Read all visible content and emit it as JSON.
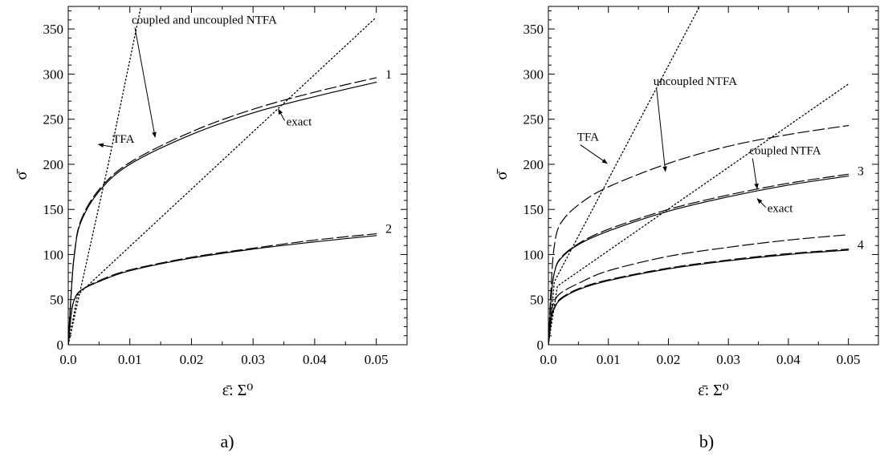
{
  "figure": {
    "panels": [
      "a)",
      "b)"
    ]
  },
  "chart_data": [
    {
      "type": "line",
      "panel_label": "a)",
      "xlabel": "ε̄: Σ⁰",
      "ylabel": "σ̄",
      "xlim": [
        0,
        0.055
      ],
      "ylim": [
        0,
        375
      ],
      "xticks": [
        0,
        0.01,
        0.02,
        0.03,
        0.04,
        0.05
      ],
      "xtick_labels": [
        "0.0",
        "0.01",
        "0.02",
        "0.03",
        "0.04",
        "0.05"
      ],
      "yticks": [
        0,
        50,
        100,
        150,
        200,
        250,
        300,
        350
      ],
      "grid": false,
      "legend": "none",
      "series": [
        {
          "style": "dotted",
          "x": [
            0,
            0.0065,
            0.0118
          ],
          "y": [
            0,
            200,
            375
          ]
        },
        {
          "style": "dotted",
          "x": [
            0,
            0.0015,
            0.05
          ],
          "y": [
            0,
            55,
            363
          ]
        },
        {
          "style": "solid",
          "x": [
            0,
            0.0005,
            0.001,
            0.002,
            0.005,
            0.01,
            0.02,
            0.03,
            0.04,
            0.05
          ],
          "y": [
            0,
            60,
            100,
            135,
            170,
            200,
            233,
            257,
            275,
            291
          ]
        },
        {
          "style": "dashed",
          "x": [
            0,
            0.0005,
            0.001,
            0.002,
            0.005,
            0.01,
            0.02,
            0.03,
            0.04,
            0.05
          ],
          "y": [
            0,
            60,
            101,
            137,
            172,
            202,
            236,
            261,
            280,
            296
          ]
        },
        {
          "style": "solid",
          "x": [
            0,
            0.0005,
            0.001,
            0.002,
            0.005,
            0.01,
            0.02,
            0.03,
            0.04,
            0.05
          ],
          "y": [
            0,
            35,
            50,
            60,
            70,
            82,
            96,
            106,
            114,
            121
          ]
        },
        {
          "style": "dashed",
          "x": [
            0,
            0.0005,
            0.001,
            0.002,
            0.005,
            0.01,
            0.02,
            0.03,
            0.04,
            0.05
          ],
          "y": [
            0,
            35,
            50,
            60,
            71,
            83,
            97,
            107,
            116,
            123
          ]
        }
      ],
      "annotations": [
        {
          "text": "coupled and uncoupled NTFA",
          "x": 0.0103,
          "y": 356,
          "arrow_to": [
            0.0141,
            230
          ]
        },
        {
          "text": "TFA",
          "x": 0.0072,
          "y": 224,
          "arrow_to": [
            0.0049,
            222
          ]
        },
        {
          "text": "exact",
          "x": 0.0354,
          "y": 243,
          "arrow_to": [
            0.0341,
            261
          ]
        },
        {
          "text": "1",
          "x": 0.0515,
          "y": 295
        },
        {
          "text": "2",
          "x": 0.0515,
          "y": 124
        }
      ]
    },
    {
      "type": "line",
      "panel_label": "b)",
      "xlabel": "ε̄: Σ⁰",
      "ylabel": "σ̄",
      "xlim": [
        0,
        0.055
      ],
      "ylim": [
        0,
        375
      ],
      "xticks": [
        0,
        0.01,
        0.02,
        0.03,
        0.04,
        0.05
      ],
      "xtick_labels": [
        "0.0",
        "0.01",
        "0.02",
        "0.03",
        "0.04",
        "0.05"
      ],
      "yticks": [
        0,
        50,
        100,
        150,
        200,
        250,
        300,
        350
      ],
      "grid": false,
      "legend": "none",
      "series": [
        {
          "style": "dotted",
          "x": [
            0,
            0.001,
            0.0252
          ],
          "y": [
            0,
            70,
            375
          ]
        },
        {
          "style": "dotted",
          "x": [
            0,
            0.0015,
            0.05
          ],
          "y": [
            0,
            65,
            289
          ]
        },
        {
          "style": "dashed",
          "x": [
            0,
            0.0005,
            0.001,
            0.002,
            0.005,
            0.01,
            0.02,
            0.03,
            0.04,
            0.05
          ],
          "y": [
            0,
            70,
            110,
            134,
            155,
            175,
            201,
            220,
            233,
            243
          ]
        },
        {
          "style": "solid",
          "x": [
            0,
            0.0005,
            0.001,
            0.002,
            0.005,
            0.01,
            0.02,
            0.03,
            0.04,
            0.05
          ],
          "y": [
            0,
            55,
            80,
            95,
            111,
            126,
            148,
            164,
            177,
            187
          ]
        },
        {
          "style": "dashed",
          "x": [
            0,
            0.0005,
            0.001,
            0.002,
            0.005,
            0.01,
            0.02,
            0.03,
            0.04,
            0.05
          ],
          "y": [
            0,
            55,
            80,
            96,
            112,
            128,
            150,
            166,
            179,
            189
          ]
        },
        {
          "style": "dashed",
          "x": [
            0,
            0.0005,
            0.001,
            0.002,
            0.005,
            0.01,
            0.02,
            0.03,
            0.04,
            0.05
          ],
          "y": [
            0,
            35,
            48,
            57,
            68,
            82,
            98,
            108,
            116,
            122
          ]
        },
        {
          "style": "solid",
          "x": [
            0,
            0.0005,
            0.001,
            0.002,
            0.005,
            0.01,
            0.02,
            0.03,
            0.04,
            0.05
          ],
          "y": [
            0,
            30,
            40,
            50,
            61,
            71,
            84,
            93,
            100,
            105
          ]
        },
        {
          "style": "dashed",
          "x": [
            0,
            0.0005,
            0.001,
            0.002,
            0.005,
            0.01,
            0.02,
            0.03,
            0.04,
            0.05
          ],
          "y": [
            0,
            30,
            41,
            51,
            62,
            72,
            85,
            94,
            101,
            106
          ]
        }
      ],
      "annotations": [
        {
          "text": "uncoupled NTFA",
          "x": 0.0175,
          "y": 288,
          "arrow_to": [
            0.0195,
            192
          ]
        },
        {
          "text": "TFA",
          "x": 0.0048,
          "y": 226,
          "arrow_to": [
            0.0098,
            201
          ]
        },
        {
          "text": "coupled NTFA",
          "x": 0.0335,
          "y": 211,
          "arrow_to": [
            0.0348,
            173
          ]
        },
        {
          "text": "exact",
          "x": 0.0365,
          "y": 147,
          "arrow_to": [
            0.0348,
            162
          ]
        },
        {
          "text": "3",
          "x": 0.0515,
          "y": 188
        },
        {
          "text": "4",
          "x": 0.0515,
          "y": 106
        }
      ]
    }
  ]
}
